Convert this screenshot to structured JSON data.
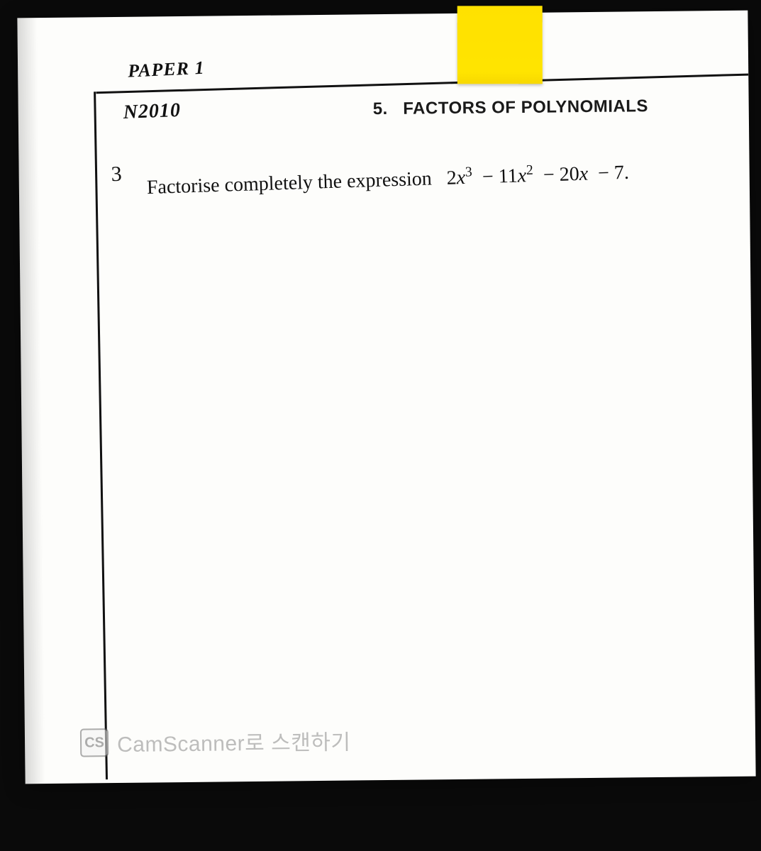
{
  "colors": {
    "page_bg": "#fdfdfb",
    "outer_bg": "#0a0a0a",
    "rule": "#111111",
    "sticky_top": "#ffe100",
    "sticky_bottom": "#f7d800",
    "text": "#111111",
    "watermark_text": "#8a8a8a",
    "watermark_border": "#6b6b6b"
  },
  "typography": {
    "header_italic_fontsize_pt": 20,
    "section_fontsize_pt": 18,
    "question_fontsize_pt": 21,
    "watermark_fontsize_pt": 22
  },
  "header": {
    "paper_label": "PAPER 1",
    "year": "N2010",
    "section_number": "5.",
    "section_title": "FACTORS OF POLYNOMIALS"
  },
  "question": {
    "number": "3",
    "stem": "Factorise completely the expression",
    "expression_plain": "2x^3 − 11x^2 − 20x − 7.",
    "expression_terms": [
      {
        "coef": "2",
        "var": "x",
        "power": "3",
        "op": ""
      },
      {
        "coef": "11",
        "var": "x",
        "power": "2",
        "op": "−"
      },
      {
        "coef": "20",
        "var": "x",
        "power": "",
        "op": "−"
      },
      {
        "coef": "7",
        "var": "",
        "power": "",
        "op": "−"
      }
    ]
  },
  "watermark": {
    "badge": "CS",
    "text": "CamScanner로 스캔하기"
  }
}
